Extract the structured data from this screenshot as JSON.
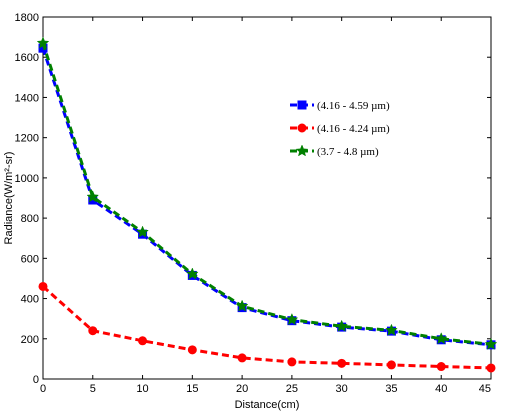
{
  "chart_data": {
    "type": "line",
    "title": "",
    "xlabel": "Distance(cm)",
    "ylabel": "Radiance(W/m²-sr)",
    "xlim": [
      0,
      45
    ],
    "ylim": [
      0,
      1800
    ],
    "xticks": [
      0,
      5,
      10,
      15,
      20,
      25,
      30,
      35,
      40,
      45
    ],
    "yticks": [
      0,
      200,
      400,
      600,
      800,
      1000,
      1200,
      1400,
      1600,
      1800
    ],
    "grid": false,
    "legend_position": "top-right",
    "x": [
      0,
      5,
      10,
      15,
      20,
      25,
      30,
      35,
      40,
      45
    ],
    "series": [
      {
        "name": "(4.16 - 4.59 µm)",
        "values": [
          1645,
          890,
          720,
          515,
          355,
          290,
          258,
          238,
          195,
          170
        ],
        "color": "#0000ff",
        "marker": "square",
        "line_style": "dashed"
      },
      {
        "name": "(4.16 - 4.24 µm)",
        "values": [
          460,
          240,
          190,
          145,
          105,
          85,
          78,
          70,
          62,
          55
        ],
        "color": "#ff0000",
        "marker": "circle",
        "line_style": "dashed"
      },
      {
        "name": "(3.7 - 4.8 µm)",
        "values": [
          1670,
          905,
          730,
          522,
          362,
          295,
          262,
          242,
          200,
          172
        ],
        "color": "#008000",
        "marker": "star",
        "line_style": "dashed"
      }
    ]
  }
}
